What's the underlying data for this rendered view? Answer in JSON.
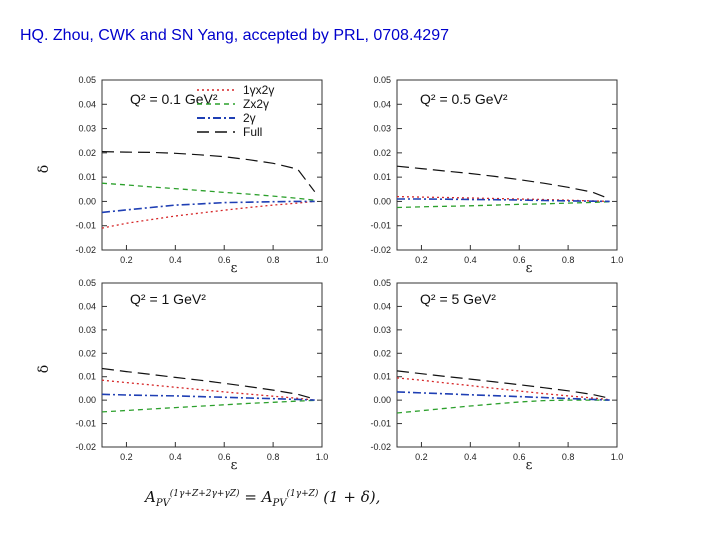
{
  "slide": {
    "title": "HQ. Zhou, CWK and SN Yang, accepted by PRL, 0708.4297"
  },
  "formula": {
    "lhs_symbol": "A",
    "lhs_sub": "PV",
    "lhs_sup": "(1γ+Z+2γ+γZ)",
    "equals": "=",
    "rhs_symbol": "A",
    "rhs_sub": "PV",
    "rhs_sup": "(1γ+Z)",
    "factor": "(1 + δ),"
  },
  "colors": {
    "series": [
      "#d62728",
      "#2ca02c",
      "#1f3fb4",
      "#111111"
    ],
    "axis": "#333333"
  },
  "chart_data": [
    {
      "type": "line",
      "panel": "top-left",
      "title": "Q² = 0.1 GeV²",
      "xlabel": "ε",
      "ylabel": "δ",
      "xlim": [
        0.1,
        1.0
      ],
      "ylim": [
        -0.02,
        0.05
      ],
      "xticks": [
        "0.2",
        "0.4",
        "0.6",
        "0.8",
        "1.0"
      ],
      "yticks": [
        "-0.02",
        "-0.01",
        "0.00",
        "0.01",
        "0.02",
        "0.03",
        "0.04",
        "0.05"
      ],
      "legend": [
        "1γx2γ",
        "Zx2γ",
        "2γ",
        "Full"
      ],
      "series": [
        {
          "name": "1γx2γ",
          "x": [
            0.1,
            0.2,
            0.3,
            0.4,
            0.5,
            0.6,
            0.7,
            0.8,
            0.9,
            0.97
          ],
          "values": [
            -0.011,
            -0.009,
            -0.0075,
            -0.006,
            -0.0048,
            -0.0036,
            -0.0025,
            -0.0015,
            -0.0007,
            0.0
          ]
        },
        {
          "name": "Zx2γ",
          "x": [
            0.1,
            0.2,
            0.3,
            0.4,
            0.5,
            0.6,
            0.7,
            0.8,
            0.9,
            0.97
          ],
          "values": [
            0.0075,
            0.0068,
            0.006,
            0.0053,
            0.0045,
            0.0037,
            0.003,
            0.0022,
            0.0013,
            0.0005
          ]
        },
        {
          "name": "2γ",
          "x": [
            0.1,
            0.2,
            0.3,
            0.4,
            0.5,
            0.6,
            0.7,
            0.8,
            0.9,
            0.97
          ],
          "values": [
            -0.0045,
            -0.0035,
            -0.0025,
            -0.0015,
            -0.001,
            -0.0005,
            -0.0003,
            -0.0001,
            0.0,
            0.0
          ]
        },
        {
          "name": "Full",
          "x": [
            0.1,
            0.2,
            0.3,
            0.4,
            0.5,
            0.6,
            0.7,
            0.8,
            0.9,
            0.97
          ],
          "values": [
            0.0205,
            0.0203,
            0.0202,
            0.0198,
            0.0192,
            0.0184,
            0.0172,
            0.0157,
            0.0133,
            0.004
          ]
        }
      ]
    },
    {
      "type": "line",
      "panel": "top-right",
      "title": "Q² = 0.5 GeV²",
      "xlabel": "ε",
      "ylabel": "",
      "xlim": [
        0.1,
        1.0
      ],
      "ylim": [
        -0.02,
        0.05
      ],
      "xticks": [
        "0.2",
        "0.4",
        "0.6",
        "0.8",
        "1.0"
      ],
      "yticks": [
        "-0.02",
        "-0.01",
        "0.00",
        "0.01",
        "0.02",
        "0.03",
        "0.04",
        "0.05"
      ],
      "series": [
        {
          "name": "1γx2γ",
          "x": [
            0.1,
            0.2,
            0.3,
            0.4,
            0.5,
            0.6,
            0.7,
            0.8,
            0.9,
            0.97
          ],
          "values": [
            0.002,
            0.0018,
            0.0016,
            0.0014,
            0.0012,
            0.001,
            0.0008,
            0.0005,
            0.0002,
            0.0
          ]
        },
        {
          "name": "Zx2γ",
          "x": [
            0.1,
            0.2,
            0.3,
            0.4,
            0.5,
            0.6,
            0.7,
            0.8,
            0.9,
            0.97
          ],
          "values": [
            -0.0025,
            -0.0022,
            -0.002,
            -0.0018,
            -0.0015,
            -0.0012,
            -0.001,
            -0.0007,
            -0.0004,
            -0.0001
          ]
        },
        {
          "name": "2γ",
          "x": [
            0.1,
            0.2,
            0.3,
            0.4,
            0.5,
            0.6,
            0.7,
            0.8,
            0.9,
            0.97
          ],
          "values": [
            0.001,
            0.001,
            0.0009,
            0.0008,
            0.0007,
            0.0006,
            0.0004,
            0.0002,
            0.0001,
            0.0
          ]
        },
        {
          "name": "Full",
          "x": [
            0.1,
            0.2,
            0.3,
            0.4,
            0.5,
            0.6,
            0.7,
            0.8,
            0.9,
            0.97
          ],
          "values": [
            0.0145,
            0.0135,
            0.0125,
            0.0115,
            0.0103,
            0.009,
            0.0075,
            0.0058,
            0.0038,
            0.001
          ]
        }
      ]
    },
    {
      "type": "line",
      "panel": "bottom-left",
      "title": "Q² = 1 GeV²",
      "xlabel": "ε",
      "ylabel": "δ",
      "xlim": [
        0.1,
        1.0
      ],
      "ylim": [
        -0.02,
        0.05
      ],
      "xticks": [
        "0.2",
        "0.4",
        "0.6",
        "0.8",
        "1.0"
      ],
      "yticks": [
        "-0.02",
        "-0.01",
        "0.00",
        "0.01",
        "0.02",
        "0.03",
        "0.04",
        "0.05"
      ],
      "series": [
        {
          "name": "1γx2γ",
          "x": [
            0.1,
            0.2,
            0.3,
            0.4,
            0.5,
            0.6,
            0.7,
            0.8,
            0.9,
            0.97
          ],
          "values": [
            0.0085,
            0.0075,
            0.0065,
            0.0055,
            0.0045,
            0.0035,
            0.0026,
            0.0017,
            0.0008,
            0.0
          ]
        },
        {
          "name": "Zx2γ",
          "x": [
            0.1,
            0.2,
            0.3,
            0.4,
            0.5,
            0.6,
            0.7,
            0.8,
            0.9,
            0.97
          ],
          "values": [
            -0.005,
            -0.0044,
            -0.0038,
            -0.0032,
            -0.0026,
            -0.002,
            -0.0014,
            -0.0009,
            -0.0004,
            -0.0001
          ]
        },
        {
          "name": "2γ",
          "x": [
            0.1,
            0.2,
            0.3,
            0.4,
            0.5,
            0.6,
            0.7,
            0.8,
            0.9,
            0.97
          ],
          "values": [
            0.0025,
            0.0022,
            0.002,
            0.0018,
            0.0015,
            0.0012,
            0.0009,
            0.0006,
            0.0003,
            0.0
          ]
        },
        {
          "name": "Full",
          "x": [
            0.1,
            0.2,
            0.3,
            0.4,
            0.5,
            0.6,
            0.7,
            0.8,
            0.9,
            0.97
          ],
          "values": [
            0.0135,
            0.0122,
            0.011,
            0.0097,
            0.0085,
            0.0072,
            0.0058,
            0.0043,
            0.0025,
            0.0005
          ]
        }
      ]
    },
    {
      "type": "line",
      "panel": "bottom-right",
      "title": "Q² = 5 GeV²",
      "xlabel": "ε",
      "ylabel": "",
      "xlim": [
        0.1,
        1.0
      ],
      "ylim": [
        -0.02,
        0.05
      ],
      "xticks": [
        "0.2",
        "0.4",
        "0.6",
        "0.8",
        "1.0"
      ],
      "yticks": [
        "-0.02",
        "-0.01",
        "0.00",
        "0.01",
        "0.02",
        "0.03",
        "0.04",
        "0.05"
      ],
      "series": [
        {
          "name": "1γx2γ",
          "x": [
            0.1,
            0.2,
            0.3,
            0.4,
            0.5,
            0.6,
            0.7,
            0.8,
            0.9,
            0.97
          ],
          "values": [
            0.0095,
            0.0085,
            0.0073,
            0.0062,
            0.005,
            0.0039,
            0.0028,
            0.0018,
            0.0009,
            0.0002
          ]
        },
        {
          "name": "Zx2γ",
          "x": [
            0.1,
            0.2,
            0.3,
            0.4,
            0.5,
            0.6,
            0.7,
            0.8,
            0.9,
            0.97
          ],
          "values": [
            -0.0055,
            -0.0045,
            -0.0035,
            -0.0025,
            -0.0016,
            -0.0008,
            -0.0002,
            0.0,
            0.0,
            0.0
          ]
        },
        {
          "name": "2γ",
          "x": [
            0.1,
            0.2,
            0.3,
            0.4,
            0.5,
            0.6,
            0.7,
            0.8,
            0.9,
            0.97
          ],
          "values": [
            0.0035,
            0.0031,
            0.0027,
            0.0023,
            0.0019,
            0.0015,
            0.0011,
            0.0007,
            0.0003,
            0.0
          ]
        },
        {
          "name": "Full",
          "x": [
            0.1,
            0.2,
            0.3,
            0.4,
            0.5,
            0.6,
            0.7,
            0.8,
            0.9,
            0.97
          ],
          "values": [
            0.0125,
            0.0113,
            0.0101,
            0.009,
            0.0078,
            0.0066,
            0.0053,
            0.004,
            0.0024,
            0.0008
          ]
        }
      ]
    }
  ]
}
